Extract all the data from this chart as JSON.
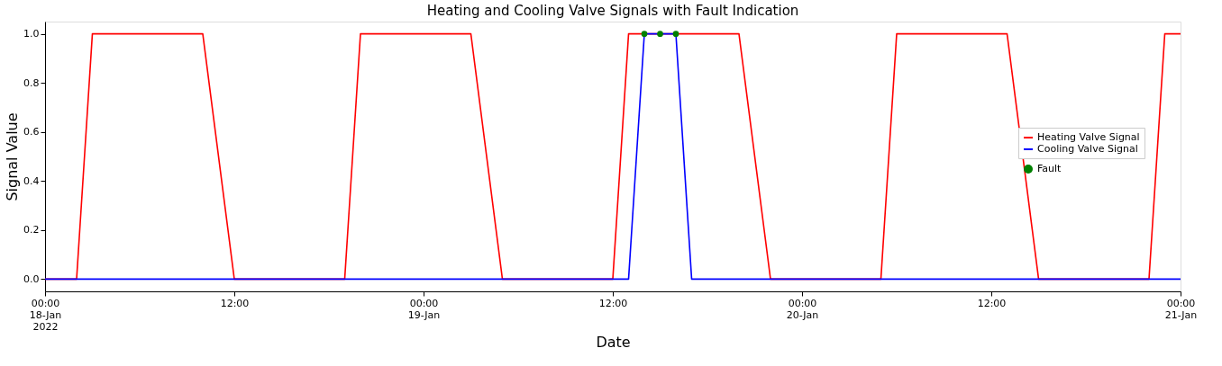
{
  "chart_data": {
    "type": "line",
    "title": "Heating and Cooling Valve Signals with Fault Indication",
    "xlabel": "Date",
    "ylabel": "Signal Value",
    "xlim": [
      "2022-01-18T00:00",
      "2022-01-21T00:00"
    ],
    "xticks": [
      {
        "value": "2022-01-18T00:00",
        "label": "00:00\n18-Jan\n2022"
      },
      {
        "value": "2022-01-18T12:00",
        "label": "12:00"
      },
      {
        "value": "2022-01-19T00:00",
        "label": "00:00\n19-Jan"
      },
      {
        "value": "2022-01-19T12:00",
        "label": "12:00"
      },
      {
        "value": "2022-01-20T00:00",
        "label": "00:00\n20-Jan"
      },
      {
        "value": "2022-01-20T12:00",
        "label": "12:00"
      },
      {
        "value": "2022-01-21T00:00",
        "label": "00:00\n21-Jan"
      }
    ],
    "ylim": [
      -0.05,
      1.05
    ],
    "yticks": [
      {
        "value": 0,
        "label": "0.0"
      },
      {
        "value": 0.2,
        "label": "0.2"
      },
      {
        "value": 0.4,
        "label": "0.4"
      },
      {
        "value": 0.6,
        "label": "0.6"
      },
      {
        "value": 0.8,
        "label": "0.8"
      },
      {
        "value": 1,
        "label": "1.0"
      }
    ],
    "grid": false,
    "legend": "right",
    "series": [
      {
        "name": "Heating Valve Signal",
        "color": "#ff0000",
        "marker": "none",
        "x": [
          "2022-01-18T00:00",
          "2022-01-18T02:00",
          "2022-01-18T03:00",
          "2022-01-18T10:00",
          "2022-01-18T12:00",
          "2022-01-18T19:00",
          "2022-01-18T20:00",
          "2022-01-19T03:00",
          "2022-01-19T05:00",
          "2022-01-19T12:00",
          "2022-01-19T13:00",
          "2022-01-19T20:00",
          "2022-01-19T22:00",
          "2022-01-20T05:00",
          "2022-01-20T06:00",
          "2022-01-20T13:00",
          "2022-01-20T15:00",
          "2022-01-20T22:00",
          "2022-01-20T23:00",
          "2022-01-21T00:00"
        ],
        "values": [
          0,
          0,
          1,
          1,
          0,
          0,
          1,
          1,
          0,
          0,
          1,
          1,
          0,
          0,
          1,
          1,
          0,
          0,
          1,
          1
        ]
      },
      {
        "name": "Cooling Valve Signal",
        "color": "#0000ff",
        "marker": "none",
        "x": [
          "2022-01-18T00:00",
          "2022-01-19T13:00",
          "2022-01-19T14:00",
          "2022-01-19T16:00",
          "2022-01-19T17:00",
          "2022-01-21T00:00"
        ],
        "values": [
          0,
          0,
          1,
          1,
          0,
          0
        ]
      },
      {
        "name": "Fault",
        "type": "scatter",
        "color": "#008000",
        "marker": "circle",
        "x": [
          "2022-01-19T14:00",
          "2022-01-19T15:00",
          "2022-01-19T16:00"
        ],
        "values": [
          1,
          1,
          1
        ]
      }
    ]
  }
}
